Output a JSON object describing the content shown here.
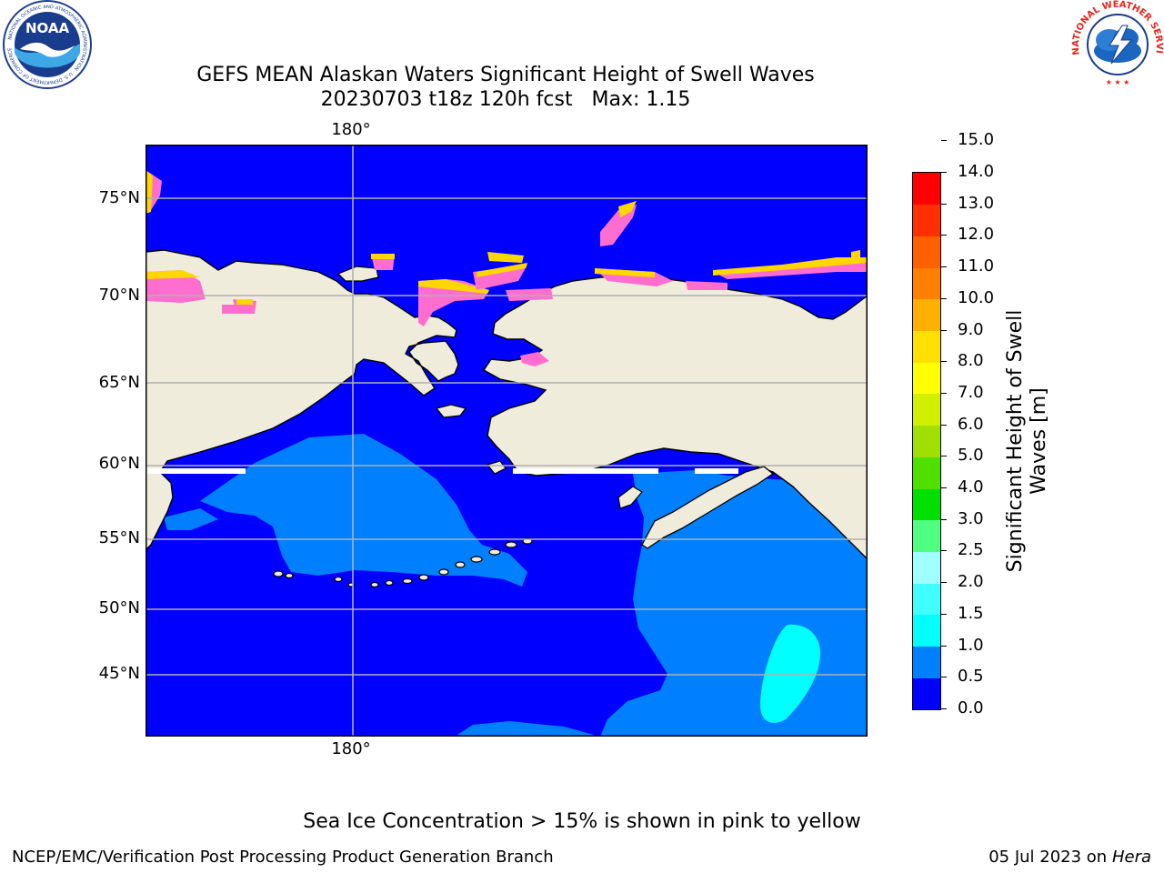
{
  "header": {
    "title_line1": "GEFS MEAN Alaskan Waters Significant Height of Swell Waves",
    "title_line2": "20230703 t18z 120h fcst   Max: 1.15"
  },
  "logos": {
    "left": {
      "name": "noaa-logo",
      "text": "NOAA",
      "ring_text": "NATIONAL OCEANIC AND ATMOSPHERIC ADMINISTRATION · U.S. DEPARTMENT OF COMMERCE"
    },
    "right": {
      "name": "nws-logo",
      "ring_text": "NATIONAL WEATHER SERVICE"
    }
  },
  "map": {
    "lat_labels": [
      "75°N",
      "70°N",
      "65°N",
      "60°N",
      "55°N",
      "50°N",
      "45°N"
    ],
    "lon_label_top": "180°",
    "lon_label_bottom": "180°",
    "land_color": "#efecdc",
    "gridline_color": "#b0b0b0"
  },
  "colorbar": {
    "title_line1": "Significant Height of Swell",
    "title_line2": "Waves [m]",
    "ticks": [
      "0.0",
      "0.5",
      "1.0",
      "1.5",
      "2.0",
      "2.5",
      "3.0",
      "4.0",
      "5.0",
      "6.0",
      "7.0",
      "8.0",
      "9.0",
      "10.0",
      "11.0",
      "12.0",
      "13.0",
      "14.0",
      "15.0"
    ],
    "colors": [
      "#0000ff",
      "#0080ff",
      "#00ffff",
      "#40ffff",
      "#a0ffff",
      "#50ff80",
      "#00e000",
      "#50e000",
      "#a0e000",
      "#d0f000",
      "#ffff00",
      "#ffe000",
      "#ffb000",
      "#ff8000",
      "#ff6000",
      "#ff3000",
      "#ff0000"
    ]
  },
  "ice_note": "Sea Ice Concentration > 15% is shown in pink to yellow",
  "footer": {
    "left": "NCEP/EMC/Verification Post Processing Product Generation Branch",
    "right_date": "05 Jul 2023 on ",
    "right_host": "Hera"
  }
}
